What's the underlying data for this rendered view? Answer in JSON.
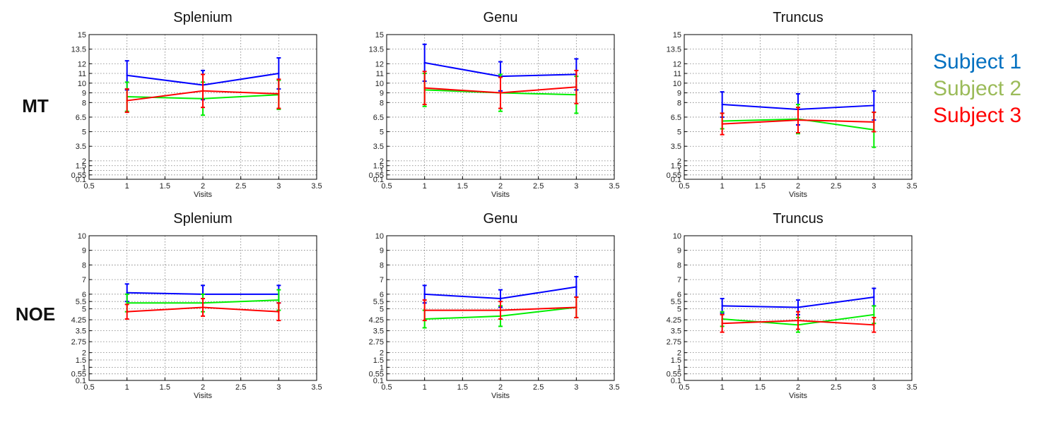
{
  "legend": [
    {
      "label": "Subject 1",
      "color": "#0070c0"
    },
    {
      "label": "Subject 2",
      "color": "#9bbb59"
    },
    {
      "label": "Subject 3",
      "color": "#ff0000"
    }
  ],
  "row_labels": [
    "MT",
    "NOE"
  ],
  "chart_data": [
    {
      "type": "line",
      "row_label": "MT",
      "title": "Splenium",
      "xlabel": "Visits",
      "ylabel": "",
      "x": [
        1,
        2,
        3
      ],
      "xlim": [
        0.5,
        3.5
      ],
      "ylim": [
        0.1,
        15
      ],
      "xticks": [
        "0.5",
        "1",
        "1.5",
        "2",
        "2.5",
        "3",
        "3.5"
      ],
      "yticks": [
        "0.1",
        "0.55",
        "1",
        "1.5",
        "2",
        "3.5",
        "5",
        "6.5",
        "8",
        "9",
        "10",
        "11",
        "12",
        "13.5",
        "15"
      ],
      "grid": true,
      "series": [
        {
          "name": "Subject 1",
          "color": "#0000ff",
          "values": [
            10.8,
            9.8,
            11.0
          ],
          "err": [
            1.5,
            1.5,
            1.6
          ]
        },
        {
          "name": "Subject 2",
          "color": "#00ee00",
          "values": [
            8.6,
            8.4,
            8.8
          ],
          "err": [
            1.5,
            1.7,
            1.5
          ]
        },
        {
          "name": "Subject 3",
          "color": "#ff0000",
          "values": [
            8.2,
            9.2,
            8.9
          ],
          "err": [
            1.2,
            1.7,
            1.5
          ]
        }
      ]
    },
    {
      "type": "line",
      "row_label": "MT",
      "title": "Genu",
      "xlabel": "Visits",
      "ylabel": "",
      "x": [
        1,
        2,
        3
      ],
      "xlim": [
        0.5,
        3.5
      ],
      "ylim": [
        0.1,
        15
      ],
      "xticks": [
        "0.5",
        "1",
        "1.5",
        "2",
        "2.5",
        "3",
        "3.5"
      ],
      "yticks": [
        "0.1",
        "0.55",
        "1",
        "1.5",
        "2",
        "3.5",
        "5",
        "6.5",
        "8",
        "9",
        "10",
        "11",
        "12",
        "13.5",
        "15"
      ],
      "grid": true,
      "series": [
        {
          "name": "Subject 1",
          "color": "#0000ff",
          "values": [
            12.1,
            10.7,
            10.9
          ],
          "err": [
            1.9,
            1.5,
            1.6
          ]
        },
        {
          "name": "Subject 2",
          "color": "#00ee00",
          "values": [
            9.3,
            9.0,
            8.8
          ],
          "err": [
            1.7,
            1.9,
            1.9
          ]
        },
        {
          "name": "Subject 3",
          "color": "#ff0000",
          "values": [
            9.5,
            9.0,
            9.6
          ],
          "err": [
            1.7,
            1.6,
            1.7
          ]
        }
      ]
    },
    {
      "type": "line",
      "row_label": "MT",
      "title": "Truncus",
      "xlabel": "Visits",
      "ylabel": "",
      "x": [
        1,
        2,
        3
      ],
      "xlim": [
        0.5,
        3.5
      ],
      "ylim": [
        0.1,
        15
      ],
      "xticks": [
        "0.5",
        "1",
        "1.5",
        "2",
        "2.5",
        "3",
        "3.5"
      ],
      "yticks": [
        "0.1",
        "0.55",
        "1",
        "1.5",
        "2",
        "3.5",
        "5",
        "6.5",
        "8",
        "9",
        "10",
        "11",
        "12",
        "13.5",
        "15"
      ],
      "grid": true,
      "series": [
        {
          "name": "Subject 1",
          "color": "#0000ff",
          "values": [
            7.8,
            7.3,
            7.7
          ],
          "err": [
            1.3,
            1.6,
            1.5
          ]
        },
        {
          "name": "Subject 2",
          "color": "#00ee00",
          "values": [
            6.1,
            6.3,
            5.2
          ],
          "err": [
            0.8,
            1.5,
            1.8
          ]
        },
        {
          "name": "Subject 3",
          "color": "#ff0000",
          "values": [
            5.8,
            6.2,
            6.0
          ],
          "err": [
            1.1,
            1.3,
            1.0
          ]
        }
      ]
    },
    {
      "type": "line",
      "row_label": "NOE",
      "title": "Splenium",
      "xlabel": "Visits",
      "ylabel": "",
      "x": [
        1,
        2,
        3
      ],
      "xlim": [
        0.5,
        3.5
      ],
      "ylim": [
        0.1,
        10
      ],
      "xticks": [
        "0.5",
        "1",
        "1.5",
        "2",
        "2.5",
        "3",
        "3.5"
      ],
      "yticks": [
        "0.1",
        "0.55",
        "1",
        "1.5",
        "2",
        "2.75",
        "3.5",
        "4.25",
        "5",
        "5.5",
        "6",
        "7",
        "8",
        "9",
        "10"
      ],
      "grid": true,
      "series": [
        {
          "name": "Subject 1",
          "color": "#0000ff",
          "values": [
            6.1,
            6.0,
            6.0
          ],
          "err": [
            0.6,
            0.6,
            0.6
          ]
        },
        {
          "name": "Subject 2",
          "color": "#00ee00",
          "values": [
            5.4,
            5.4,
            5.6
          ],
          "err": [
            0.6,
            0.6,
            0.7
          ]
        },
        {
          "name": "Subject 3",
          "color": "#ff0000",
          "values": [
            4.8,
            5.1,
            4.8
          ],
          "err": [
            0.5,
            0.6,
            0.6
          ]
        }
      ]
    },
    {
      "type": "line",
      "row_label": "NOE",
      "title": "Genu",
      "xlabel": "Visits",
      "ylabel": "",
      "x": [
        1,
        2,
        3
      ],
      "xlim": [
        0.5,
        3.5
      ],
      "ylim": [
        0.1,
        10
      ],
      "xticks": [
        "0.5",
        "1",
        "1.5",
        "2",
        "2.5",
        "3",
        "3.5"
      ],
      "yticks": [
        "0.1",
        "0.55",
        "1",
        "1.5",
        "2",
        "2.75",
        "3.5",
        "4.25",
        "5",
        "5.5",
        "6",
        "7",
        "8",
        "9",
        "10"
      ],
      "grid": true,
      "series": [
        {
          "name": "Subject 1",
          "color": "#0000ff",
          "values": [
            6.0,
            5.7,
            6.5
          ],
          "err": [
            0.6,
            0.6,
            0.7
          ]
        },
        {
          "name": "Subject 2",
          "color": "#00ee00",
          "values": [
            4.3,
            4.5,
            5.1
          ],
          "err": [
            0.6,
            0.7,
            0.7
          ]
        },
        {
          "name": "Subject 3",
          "color": "#ff0000",
          "values": [
            4.9,
            4.9,
            5.1
          ],
          "err": [
            0.7,
            0.6,
            0.7
          ]
        }
      ]
    },
    {
      "type": "line",
      "row_label": "NOE",
      "title": "Truncus",
      "xlabel": "Visits",
      "ylabel": "",
      "x": [
        1,
        2,
        3
      ],
      "xlim": [
        0.5,
        3.5
      ],
      "ylim": [
        0.1,
        10
      ],
      "xticks": [
        "0.5",
        "1",
        "1.5",
        "2",
        "2.5",
        "3",
        "3.5"
      ],
      "yticks": [
        "0.1",
        "0.55",
        "1",
        "1.5",
        "2",
        "2.75",
        "3.5",
        "4.25",
        "5",
        "5.5",
        "6",
        "7",
        "8",
        "9",
        "10"
      ],
      "grid": true,
      "series": [
        {
          "name": "Subject 1",
          "color": "#0000ff",
          "values": [
            5.2,
            5.1,
            5.8
          ],
          "err": [
            0.5,
            0.5,
            0.6
          ]
        },
        {
          "name": "Subject 2",
          "color": "#00ee00",
          "values": [
            4.3,
            3.9,
            4.6
          ],
          "err": [
            0.5,
            0.5,
            0.6
          ]
        },
        {
          "name": "Subject 3",
          "color": "#ff0000",
          "values": [
            4.0,
            4.2,
            3.9
          ],
          "err": [
            0.6,
            0.6,
            0.5
          ]
        }
      ]
    }
  ]
}
